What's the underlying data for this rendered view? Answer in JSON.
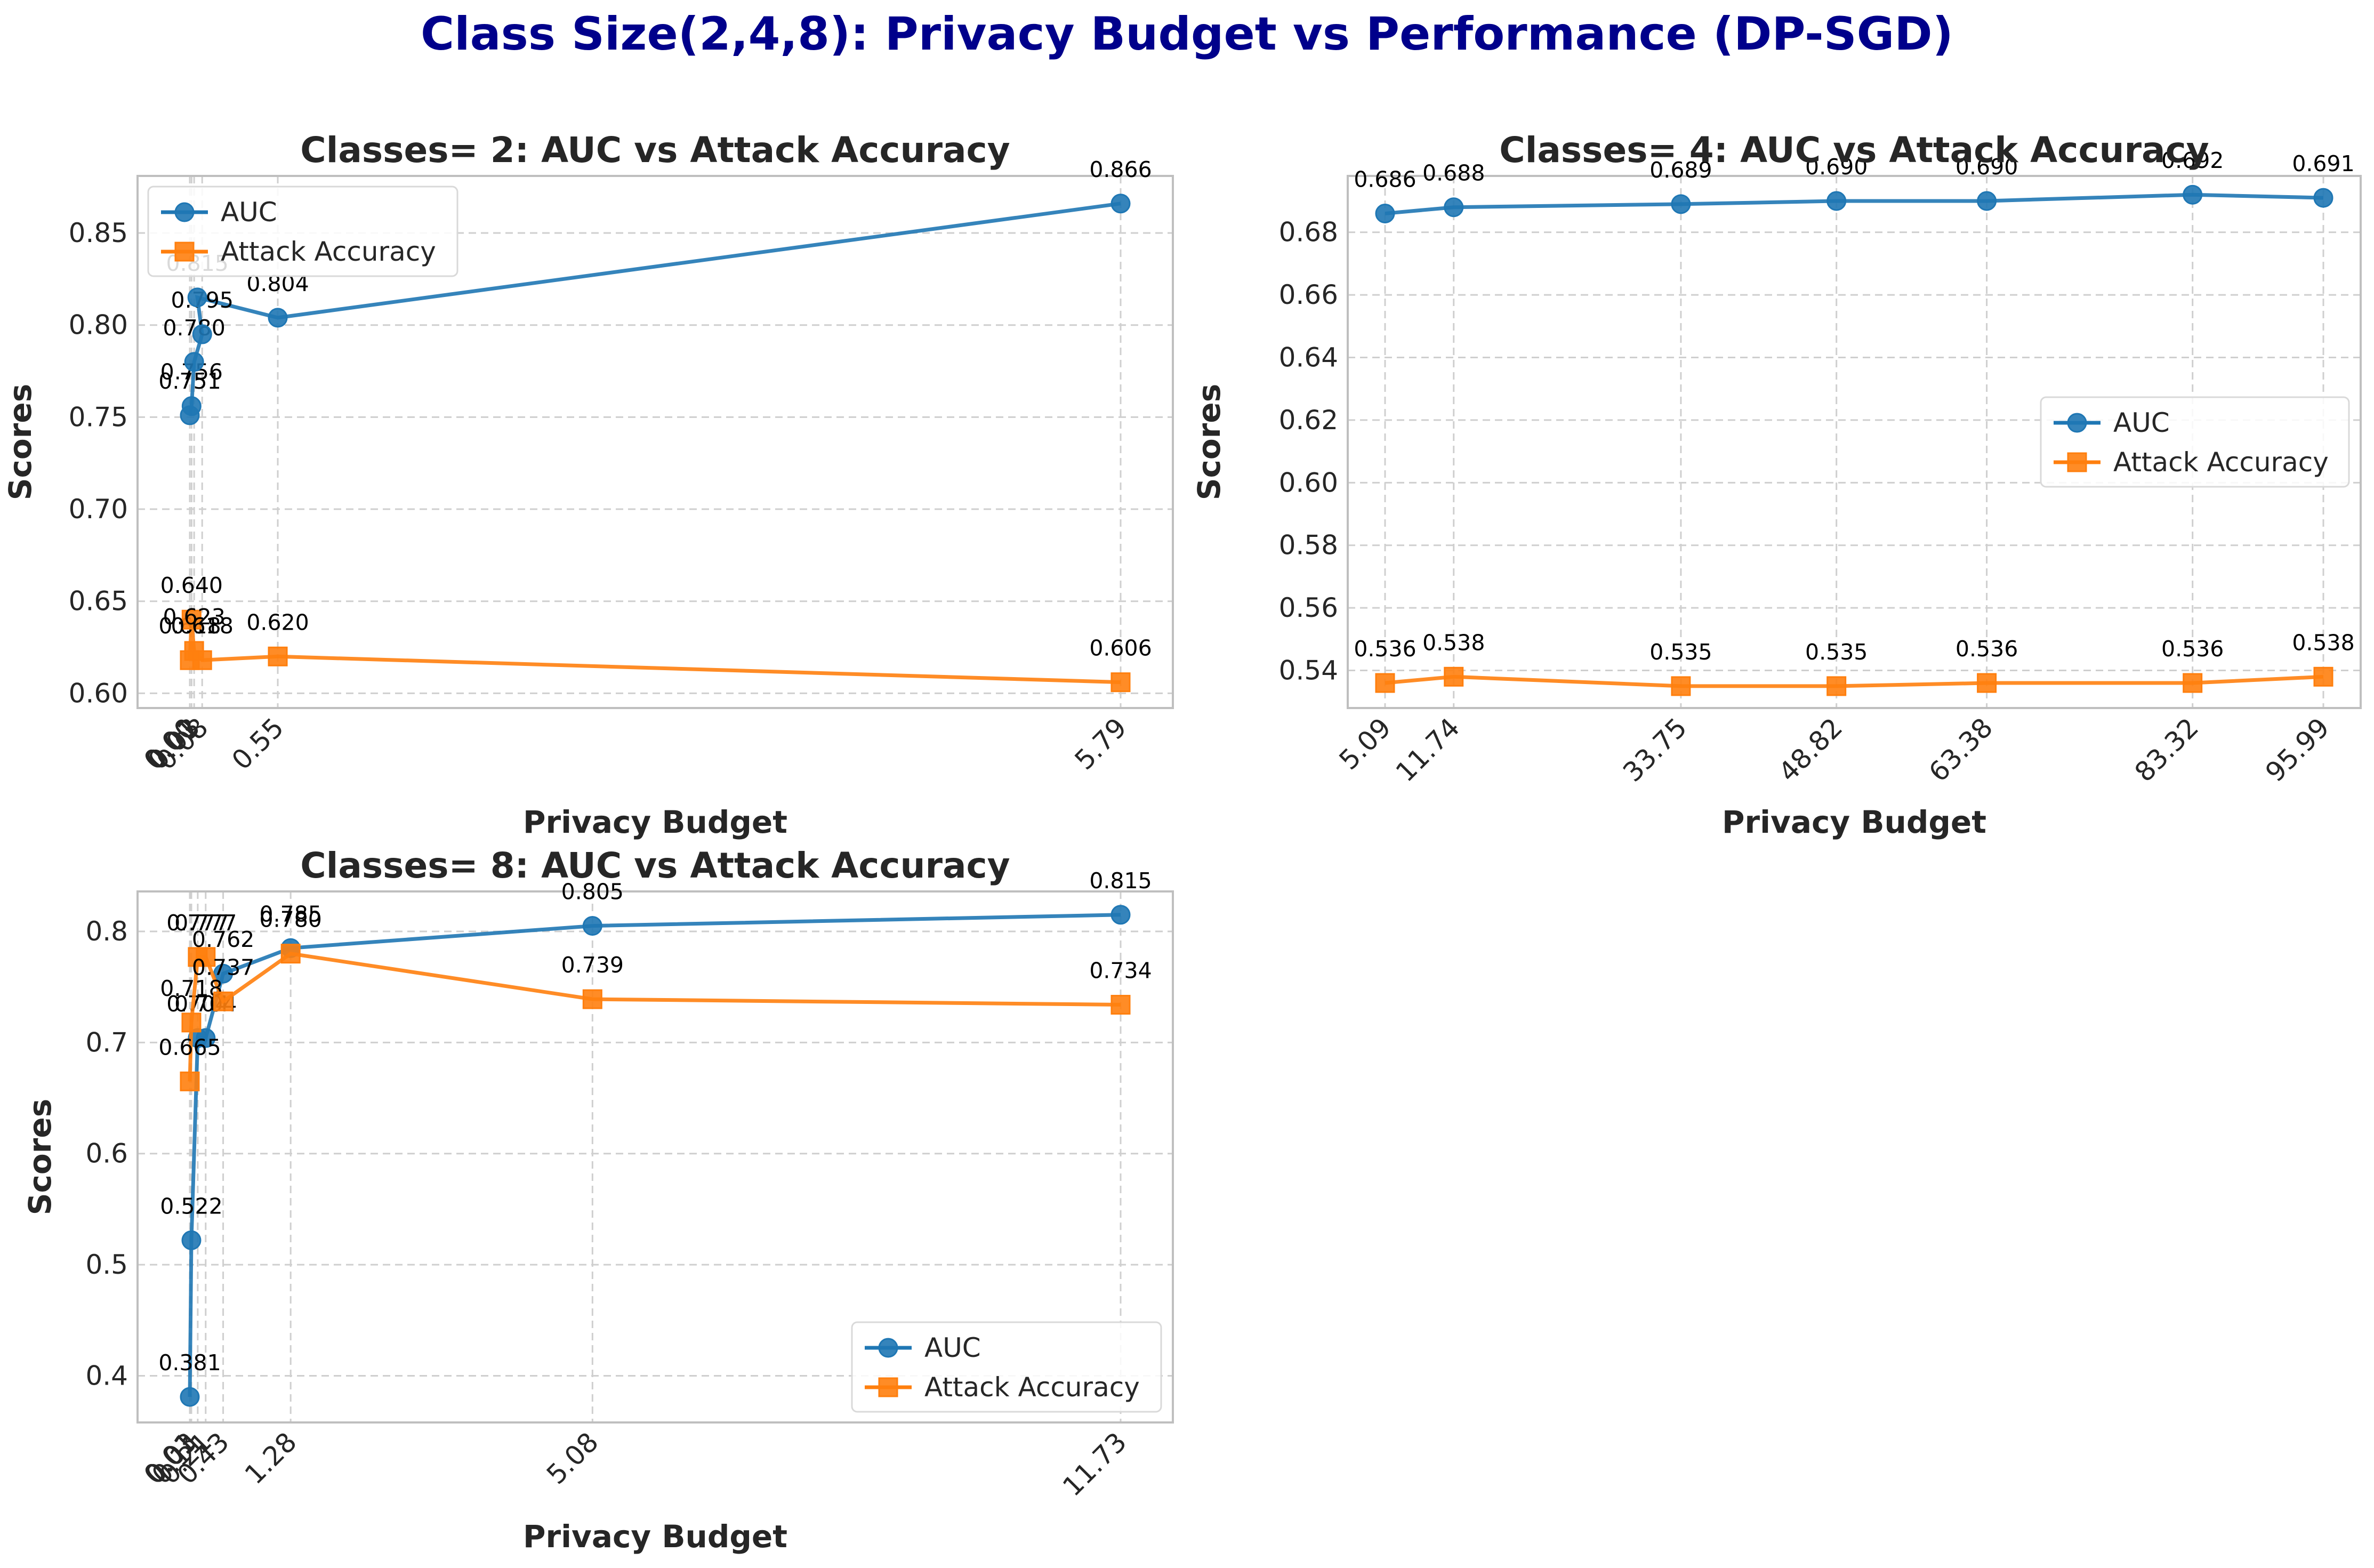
{
  "figure": {
    "title": "Class Size(2,4,8): Privacy Budget vs Performance (DP-SGD)",
    "title_color": "#00008b"
  },
  "colors": {
    "auc": "#1f77b4",
    "attack": "#ff7f0e",
    "grid": "#cfcfcf",
    "spine": "#bfbfbf",
    "text": "#262626"
  },
  "chart_data": [
    {
      "type": "line",
      "title": "Classes= 2: AUC vs Attack Accuracy",
      "xlabel": "Privacy Budget",
      "ylabel": "Scores",
      "x": [
        0.003,
        0.014,
        0.03,
        0.08,
        0.55,
        5.79
      ],
      "x_tick_labels": [
        "0.00",
        "0.01",
        "0.03",
        "0.08",
        "0.55",
        "5.79"
      ],
      "series": [
        {
          "name": "AUC",
          "marker": "circle",
          "values": [
            0.751,
            0.756,
            0.78,
            0.795,
            0.804,
            0.866
          ],
          "alt_labels": [
            null,
            null,
            null,
            null,
            null,
            null
          ]
        },
        {
          "name": "Attack Accuracy",
          "marker": "square",
          "values": [
            0.618,
            0.64,
            0.623,
            0.618,
            0.62,
            0.606
          ]
        }
      ],
      "extra_point": {
        "series": 0,
        "x": 0.05,
        "y": 0.815
      },
      "y_ticks": [
        "0.60",
        "0.65",
        "0.70",
        "0.75",
        "0.80",
        "0.85"
      ],
      "ylim": [
        0.592,
        0.881
      ],
      "grid": true,
      "legend": "upper left"
    },
    {
      "type": "line",
      "title": "Classes= 4: AUC vs Attack Accuracy",
      "xlabel": "Privacy Budget",
      "ylabel": "Scores",
      "x": [
        5.09,
        11.74,
        33.75,
        48.82,
        63.38,
        83.32,
        95.99
      ],
      "x_tick_labels": [
        "5.09",
        "11.74",
        "33.75",
        "48.82",
        "63.38",
        "83.32",
        "95.99"
      ],
      "series": [
        {
          "name": "AUC",
          "marker": "circle",
          "values": [
            0.686,
            0.688,
            0.689,
            0.69,
            0.69,
            0.692,
            0.691
          ]
        },
        {
          "name": "Attack Accuracy",
          "marker": "square",
          "values": [
            0.536,
            0.538,
            0.535,
            0.535,
            0.536,
            0.536,
            0.538
          ]
        }
      ],
      "y_ticks": [
        "0.54",
        "0.56",
        "0.58",
        "0.60",
        "0.62",
        "0.64",
        "0.66",
        "0.68"
      ],
      "ylim": [
        0.528,
        0.698
      ],
      "grid": true,
      "legend": "center right"
    },
    {
      "type": "line",
      "title": "Classes= 8: AUC vs Attack Accuracy",
      "xlabel": "Privacy Budget",
      "ylabel": "Scores",
      "x": [
        0.01,
        0.03,
        0.11,
        0.21,
        0.43,
        1.28,
        5.08,
        11.73
      ],
      "x_tick_labels": [
        "0.01",
        "0.03",
        "0.11",
        "0.21",
        "0.43",
        "1.28",
        "5.08",
        "11.73"
      ],
      "series": [
        {
          "name": "AUC",
          "marker": "circle",
          "values": [
            0.381,
            0.522,
            0.704,
            0.704,
            0.762,
            0.785,
            0.805,
            0.815
          ]
        },
        {
          "name": "Attack Accuracy",
          "marker": "square",
          "values": [
            0.665,
            0.718,
            0.777,
            0.777,
            0.737,
            0.78,
            0.739,
            0.734
          ]
        }
      ],
      "y_ticks": [
        "0.4",
        "0.5",
        "0.6",
        "0.7",
        "0.8"
      ],
      "ylim": [
        0.358,
        0.836
      ],
      "grid": true,
      "legend": "lower right"
    }
  ]
}
